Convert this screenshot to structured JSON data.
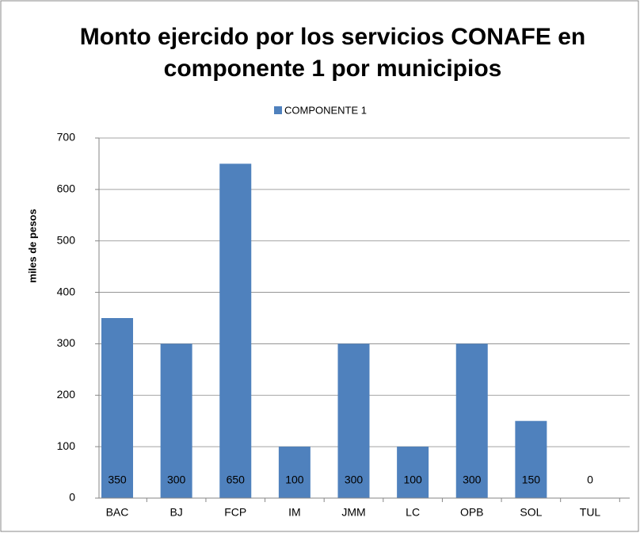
{
  "chart_data": {
    "type": "bar",
    "title": [
      "Monto ejercido por los servicios CONAFE en",
      "componente 1 por municipios"
    ],
    "y_label": "miles de pesos",
    "categories": [
      "BAC",
      "BJ",
      "FCP",
      "IM",
      "JMM",
      "LC",
      "OPB",
      "SOL",
      "TUL"
    ],
    "series": [
      {
        "name": "COMPONENTE 1",
        "color": "#4f81bd",
        "values": [
          350,
          300,
          650,
          100,
          300,
          100,
          300,
          150,
          0
        ]
      }
    ],
    "ylim": [
      0,
      700
    ],
    "yticks": [
      0,
      100,
      200,
      300,
      400,
      500,
      600,
      700
    ],
    "grid": true,
    "legend": "top"
  }
}
